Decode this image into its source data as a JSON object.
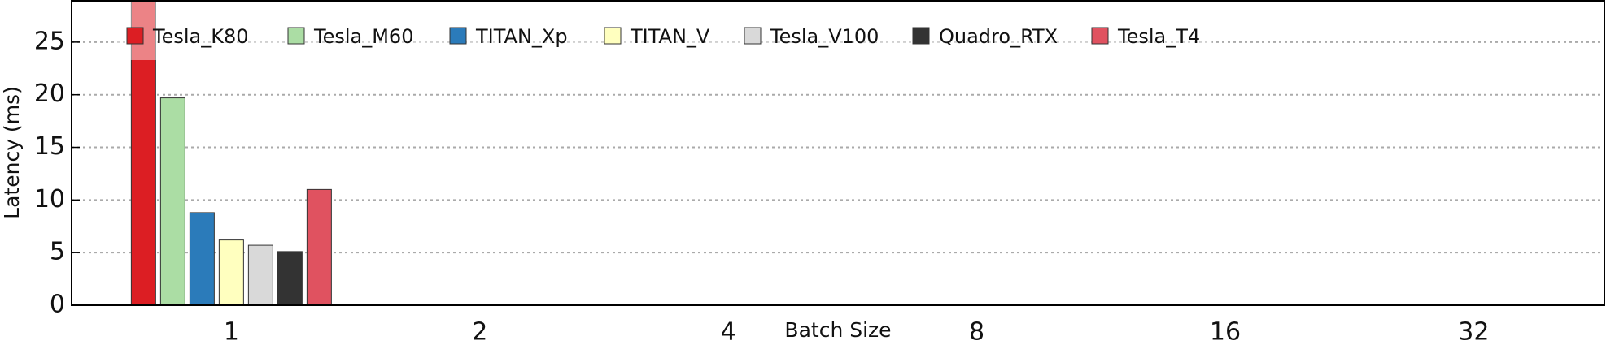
{
  "chart_data": {
    "type": "bar",
    "x_label": "Batch Size",
    "y_label": "Latency (ms)",
    "categories": [
      "1",
      "2",
      "4",
      "8",
      "16",
      "32"
    ],
    "series": [
      {
        "name": "Tesla_K80",
        "color": "#dc1e23",
        "values": [
          30,
          null,
          null,
          null,
          null,
          null
        ]
      },
      {
        "name": "Tesla_M60",
        "color": "#abdda4",
        "values": [
          19.7,
          null,
          null,
          null,
          null,
          null
        ]
      },
      {
        "name": "TITAN_Xp",
        "color": "#2b7bba",
        "values": [
          8.8,
          null,
          null,
          null,
          null,
          null
        ]
      },
      {
        "name": "TITAN_V",
        "color": "#ffffbf",
        "values": [
          6.2,
          null,
          null,
          null,
          null,
          null
        ]
      },
      {
        "name": "Tesla_V100",
        "color": "#d9d9d9",
        "values": [
          5.7,
          null,
          null,
          null,
          null,
          null
        ]
      },
      {
        "name": "Quadro_RTX",
        "color": "#333333",
        "values": [
          5.1,
          null,
          null,
          null,
          null,
          null
        ]
      },
      {
        "name": "Tesla_T4",
        "color": "#e05260",
        "values": [
          11.0,
          null,
          null,
          null,
          null,
          null
        ]
      }
    ],
    "ylim": [
      0,
      29
    ],
    "yticks": [
      0,
      5,
      10,
      15,
      20,
      25
    ],
    "grid": true,
    "legend": "top-left"
  }
}
